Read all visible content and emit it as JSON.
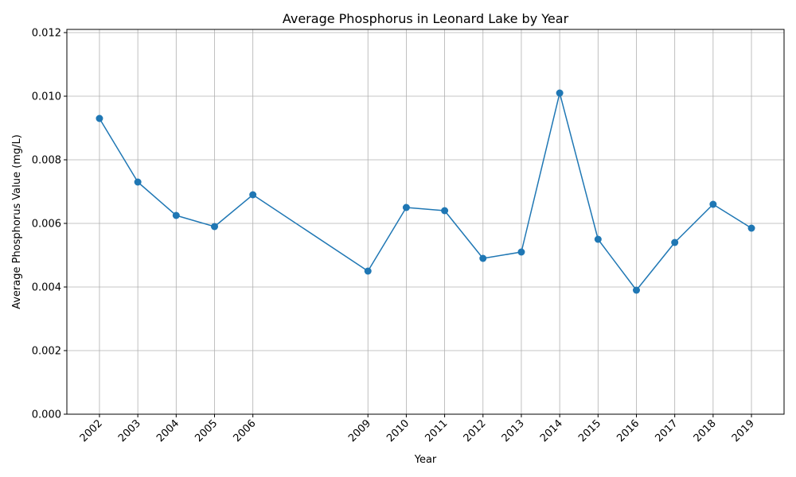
{
  "chart_data": {
    "type": "line",
    "title": "Average Phosphorus in Leonard Lake by Year",
    "xlabel": "Year",
    "ylabel": "Average Phosphorus Value (mg/L)",
    "x": [
      2002,
      2003,
      2004,
      2005,
      2006,
      2009,
      2010,
      2011,
      2012,
      2013,
      2014,
      2015,
      2016,
      2017,
      2018,
      2019
    ],
    "series": [
      {
        "values": [
          0.0093,
          0.0073,
          0.00625,
          0.0059,
          0.0069,
          0.0045,
          0.0065,
          0.0064,
          0.0049,
          0.0051,
          0.0101,
          0.0055,
          0.0039,
          0.0054,
          0.0066,
          0.00585
        ],
        "color": "#1f77b4",
        "marker": "circle"
      }
    ],
    "xticks": [
      "2002",
      "2003",
      "2004",
      "2005",
      "2006",
      "2009",
      "2010",
      "2011",
      "2012",
      "2013",
      "2014",
      "2015",
      "2016",
      "2017",
      "2018",
      "2019"
    ],
    "yticks": [
      "0.000",
      "0.002",
      "0.004",
      "0.006",
      "0.008",
      "0.010",
      "0.012"
    ],
    "ylim": [
      0,
      0.0121
    ],
    "xlim": [
      2001.15,
      2019.85
    ],
    "grid": true
  }
}
